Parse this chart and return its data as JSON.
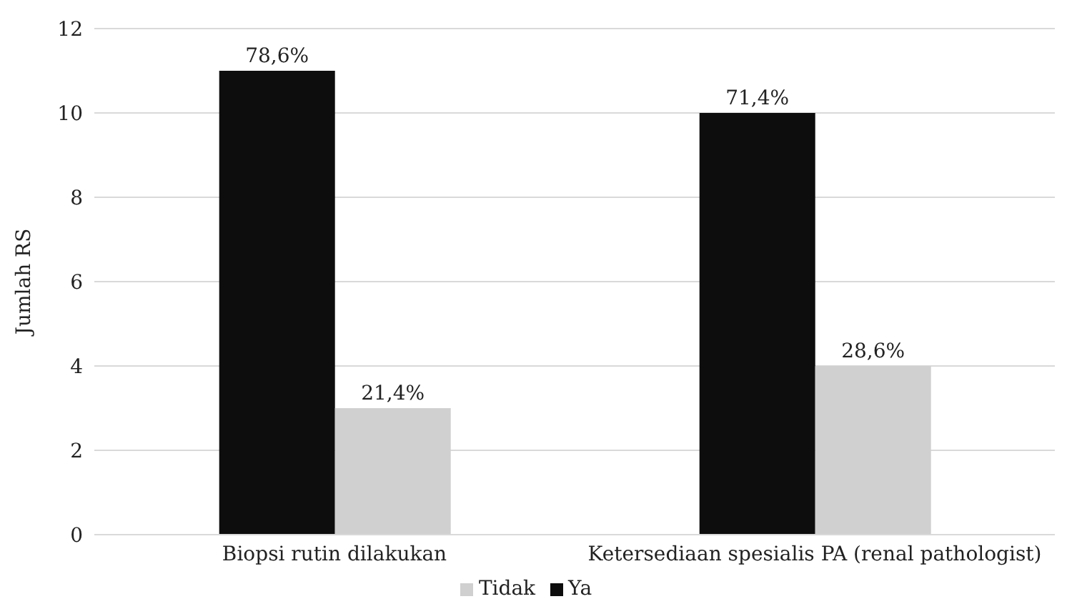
{
  "chart_data": {
    "type": "bar",
    "ylabel": "Jumlah RS",
    "categories": [
      "Biopsi rutin dilakukan",
      "Ketersediaan spesialis PA (renal pathologist)"
    ],
    "series": [
      {
        "name": "Ya",
        "color": "#0d0d0d",
        "values": [
          11,
          10
        ]
      },
      {
        "name": "Tidak",
        "color": "#d0d0d0",
        "values": [
          3,
          4
        ]
      }
    ],
    "annotations": [
      {
        "text": "78,6%",
        "x": "Biopsi rutin dilakukan",
        "y": 11
      },
      {
        "text": "21,4%",
        "x": "Biopsi rutin dilakukan",
        "y": 3
      },
      {
        "text": "71,4%",
        "x": "Ketersediaan spesialis PA (renal pathologist)",
        "y": 10
      },
      {
        "text": "28,6%",
        "x": "Ketersediaan spesialis PA (renal pathologist)",
        "y": 4
      }
    ],
    "ylim": [
      0,
      12
    ],
    "yticks": [
      0,
      2,
      4,
      6,
      8,
      10,
      12
    ],
    "grid": "y",
    "legend": "bottom"
  }
}
